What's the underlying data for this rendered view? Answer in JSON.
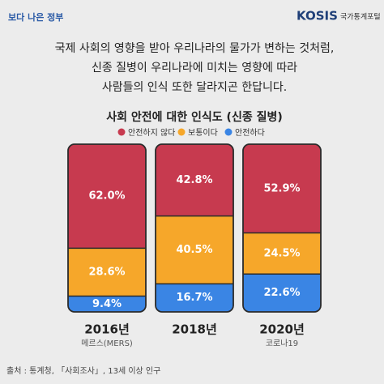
{
  "header": {
    "logo": "보다 나은 정부",
    "brand": "KOSIS",
    "brand_sub": "국가통계포털"
  },
  "intro": [
    "국제 사회의 영향을 받아 우리나라의 물가가 변하는 것처럼,",
    "신종 질병이 우리나라에 미치는 영향에 따라",
    "사람들의 인식 또한 달라지곤 한답니다."
  ],
  "chart_data": {
    "type": "bar",
    "stacked": true,
    "title": "사회 안전에 대한 인식도 (신종 질병)",
    "categories": [
      "2016년",
      "2018년",
      "2020년"
    ],
    "category_notes": [
      "메르스(MERS)",
      null,
      "코로나19"
    ],
    "series": [
      {
        "name": "안전하지 않다",
        "color": "#c73a4f",
        "values": [
          62.0,
          42.8,
          52.9
        ],
        "value_labels": [
          "62.0%",
          "42.8%",
          "52.9%"
        ]
      },
      {
        "name": "보통이다",
        "color": "#f6a72a",
        "values": [
          28.6,
          40.5,
          24.5
        ],
        "value_labels": [
          "28.6%",
          "40.5%",
          "24.5%"
        ]
      },
      {
        "name": "안전하다",
        "color": "#3a85e4",
        "values": [
          9.4,
          16.7,
          22.6
        ],
        "value_labels": [
          "9.4%",
          "16.7%",
          "22.6%"
        ]
      }
    ]
  },
  "source": "출처 : 통계청, 「사회조사」, 13세 이상 인구"
}
